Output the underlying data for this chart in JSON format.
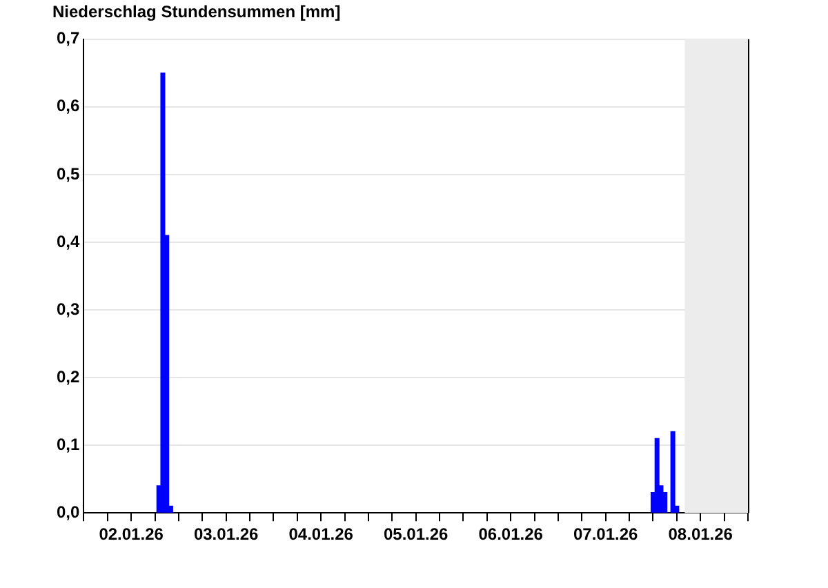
{
  "chart_data": {
    "type": "bar",
    "title": "Niederschlag Stundensummen [mm]",
    "x": [
      "--01-02T19:00",
      "--01-02T20:00",
      "--01-02T21:00",
      "--01-02T22:00",
      "--01-08T00:00",
      "--01-08T01:00",
      "--01-08T02:00",
      "--01-08T03:00",
      "--01-08T05:00",
      "--01-08T06:00"
    ],
    "values": [
      0.04,
      0.65,
      0.41,
      0.01,
      0.03,
      0.11,
      0.04,
      0.03,
      0.12,
      0.01
    ],
    "color": "#0000ff",
    "xlim": [
      "--01-02T00:00",
      "--01-09T00:00"
    ],
    "xticks": [
      {
        "value": "--01-02T00:00",
        "label": null
      },
      {
        "value": "--01-02T06:00",
        "label": null
      },
      {
        "value": "--01-02T12:00",
        "label": "02.01.26"
      },
      {
        "value": "--01-02T18:00",
        "label": null
      },
      {
        "value": "--01-03T00:00",
        "label": null
      },
      {
        "value": "--01-03T06:00",
        "label": null
      },
      {
        "value": "--01-03T12:00",
        "label": "03.01.26"
      },
      {
        "value": "--01-03T18:00",
        "label": null
      },
      {
        "value": "--01-04T00:00",
        "label": null
      },
      {
        "value": "--01-04T06:00",
        "label": null
      },
      {
        "value": "--01-04T12:00",
        "label": "04.01.26"
      },
      {
        "value": "--01-04T18:00",
        "label": null
      },
      {
        "value": "--01-05T00:00",
        "label": null
      },
      {
        "value": "--01-05T06:00",
        "label": null
      },
      {
        "value": "--01-05T12:00",
        "label": "05.01.26"
      },
      {
        "value": "--01-05T18:00",
        "label": null
      },
      {
        "value": "--01-06T00:00",
        "label": null
      },
      {
        "value": "--01-06T06:00",
        "label": null
      },
      {
        "value": "--01-06T12:00",
        "label": "06.01.26"
      },
      {
        "value": "--01-06T18:00",
        "label": null
      },
      {
        "value": "--01-07T00:00",
        "label": null
      },
      {
        "value": "--01-07T06:00",
        "label": null
      },
      {
        "value": "--01-07T12:00",
        "label": "07.01.26"
      },
      {
        "value": "--01-07T18:00",
        "label": null
      },
      {
        "value": "--01-08T00:00",
        "label": null
      },
      {
        "value": "--01-08T06:00",
        "label": null
      },
      {
        "value": "--01-08T12:00",
        "label": "08.01.26"
      },
      {
        "value": "--01-08T18:00",
        "label": null
      },
      {
        "value": "--01-09T00:00",
        "label": null
      }
    ],
    "ylim": [
      0,
      0.7
    ],
    "yticks": [
      {
        "value": 0,
        "label": "0,0"
      },
      {
        "value": 0.1,
        "label": "0,1"
      },
      {
        "value": 0.2,
        "label": "0,2"
      },
      {
        "value": 0.3,
        "label": "0,3"
      },
      {
        "value": 0.4,
        "label": "0,4"
      },
      {
        "value": 0.5,
        "label": "0,5"
      },
      {
        "value": 0.6,
        "label": "0,6"
      },
      {
        "value": 0.7,
        "label": "0,7"
      }
    ],
    "grid": "y",
    "bands": [
      {
        "axis": "x",
        "from": "--01-08T08:00",
        "to": "--01-09T00:00",
        "label": null,
        "color": "#ececec"
      }
    ]
  }
}
